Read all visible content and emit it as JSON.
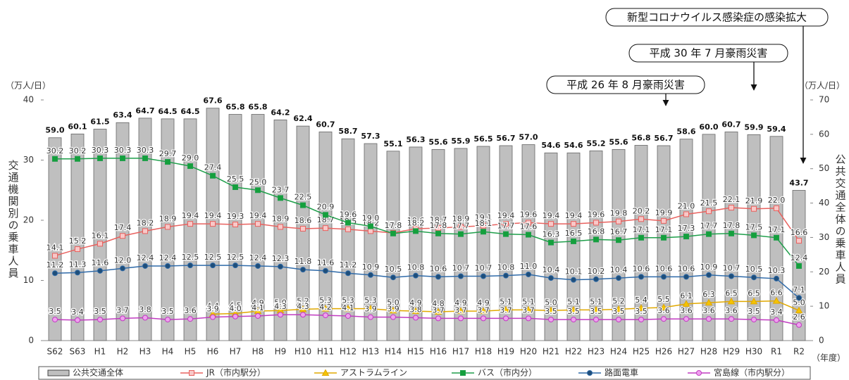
{
  "chart_data": {
    "type": "combo",
    "categories": [
      "S62",
      "S63",
      "H1",
      "H2",
      "H3",
      "H4",
      "H5",
      "H6",
      "H7",
      "H8",
      "H9",
      "H10",
      "H11",
      "H12",
      "H13",
      "H14",
      "H15",
      "H16",
      "H17",
      "H18",
      "H19",
      "H20",
      "H21",
      "H22",
      "H23",
      "H24",
      "H25",
      "H26",
      "H27",
      "H28",
      "H29",
      "H30",
      "R1",
      "R2"
    ],
    "x_label": "（年度）",
    "y_unit": "（万人/日）",
    "y2_unit": "（万人/日）",
    "y_label": "交通機関別の乗車人員",
    "y2_label": "公共交通全体の乗車人員",
    "ylim": [
      0,
      40
    ],
    "yticks": [
      0,
      10,
      20,
      30,
      40
    ],
    "y2lim": [
      0,
      70
    ],
    "y2ticks": [
      0,
      10,
      20,
      30,
      40,
      50,
      60,
      70
    ],
    "series": [
      {
        "name": "公共交通全体",
        "type": "bar",
        "axis": "y2",
        "color": "#bfbfbf",
        "values": [
          59.0,
          60.1,
          61.5,
          63.4,
          64.7,
          64.5,
          64.5,
          67.6,
          65.8,
          65.8,
          64.2,
          62.4,
          60.7,
          58.7,
          57.3,
          55.1,
          56.3,
          55.6,
          55.9,
          56.5,
          56.7,
          57.0,
          54.6,
          54.6,
          55.2,
          55.6,
          56.8,
          56.7,
          58.6,
          60.0,
          60.7,
          59.9,
          59.4,
          43.7
        ],
        "value_labels": [
          "59.0",
          "60.1",
          "61.5",
          "63.4",
          "64.7",
          "64.5",
          "64.5",
          "67.6",
          "65.8",
          "65.8",
          "64.2",
          "62.4",
          "60.7",
          "58.7",
          "57.3",
          "55.1",
          "56.3",
          "55.6",
          "55.9",
          "56.5",
          "56.7",
          "57.0",
          "54.6",
          "54.6",
          "55.2",
          "55.6",
          "56.8",
          "56.7",
          "58.6",
          "60.0",
          "60.7",
          "59.9",
          "59.4",
          "43.7"
        ]
      },
      {
        "name": "JR（市内駅分）",
        "type": "line",
        "marker": "square",
        "color": "#e8625f",
        "marker_fill": "#f8c8c8",
        "values": [
          14.1,
          15.2,
          16.1,
          17.4,
          18.2,
          18.9,
          19.4,
          19.4,
          19.3,
          19.4,
          18.9,
          18.6,
          18.7,
          18.5,
          18.2,
          17.9,
          18.6,
          18.7,
          18.9,
          19.1,
          19.4,
          19.6,
          19.4,
          19.4,
          19.6,
          19.8,
          20.2,
          19.9,
          21.0,
          21.5,
          22.1,
          21.9,
          22.0,
          16.6
        ],
        "value_labels": [
          "14.1",
          "15.2",
          "16.1",
          "17.4",
          "18.2",
          "18.9",
          "19.4",
          "19.4",
          "19.3",
          "19.4",
          "18.9",
          "18.6",
          "18.7",
          "18.5",
          "18.2",
          "17.9",
          "18.6",
          "18.7",
          "18.9",
          "19.1",
          "19.4",
          "19.6",
          "19.4",
          "19.4",
          "19.6",
          "19.8",
          "20.2",
          "19.9",
          "21.0",
          "21.5",
          "22.1",
          "21.9",
          "22.0",
          "16.6"
        ]
      },
      {
        "name": "アストラムライン",
        "type": "line",
        "marker": "triangle",
        "color": "#e0a800",
        "marker_fill": "#f5c400",
        "values": [
          null,
          null,
          null,
          null,
          null,
          null,
          null,
          4.4,
          4.5,
          4.9,
          5.0,
          5.2,
          5.3,
          5.3,
          5.3,
          5.0,
          4.9,
          4.8,
          4.9,
          4.9,
          5.1,
          5.1,
          5.0,
          5.1,
          5.1,
          5.2,
          5.4,
          5.5,
          6.1,
          6.3,
          6.5,
          6.5,
          6.6,
          5.0
        ],
        "value_labels": [
          null,
          null,
          null,
          null,
          null,
          null,
          null,
          "4.4",
          "4.5",
          "4.9",
          "5.0",
          "5.2",
          "5.3",
          "5.3",
          "5.3",
          "5.0",
          "4.9",
          "4.8",
          "4.9",
          "4.9",
          "5.1",
          "5.1",
          "5.0",
          "5.1",
          "5.1",
          "5.2",
          "5.4",
          "5.5",
          "6.1",
          "6.3",
          "6.5",
          "6.5",
          "6.6",
          "5.0"
        ]
      },
      {
        "name": "バス（市内分）",
        "type": "line",
        "marker": "square",
        "color": "#1e9e4a",
        "marker_fill": "#14a03c",
        "values": [
          30.2,
          30.2,
          30.3,
          30.3,
          30.3,
          29.7,
          29.0,
          27.4,
          25.5,
          25.0,
          23.7,
          22.5,
          20.9,
          19.6,
          19.0,
          17.8,
          18.2,
          17.8,
          17.7,
          18.1,
          17.7,
          17.6,
          16.3,
          16.5,
          16.8,
          16.7,
          17.1,
          17.1,
          17.3,
          17.7,
          17.8,
          17.5,
          17.1,
          12.4
        ],
        "value_labels": [
          "30.2",
          "30.2",
          "30.3",
          "30.3",
          "30.3",
          "29.7",
          "29.0",
          "27.4",
          "25.5",
          "25.0",
          "23.7",
          "22.5",
          "20.9",
          "19.6",
          "19.0",
          "17.8",
          "18.2",
          "17.8",
          "17.7",
          "18.1",
          "17.7",
          "17.6",
          "16.3",
          "16.5",
          "16.8",
          "16.7",
          "17.1",
          "17.1",
          "17.3",
          "17.7",
          "17.8",
          "17.5",
          "17.1",
          "12.4"
        ]
      },
      {
        "name": "路面電車",
        "type": "line",
        "marker": "circle",
        "color": "#2f6aa8",
        "marker_fill": "#1f4e79",
        "values": [
          11.2,
          11.3,
          11.6,
          12.0,
          12.4,
          12.4,
          12.5,
          12.5,
          12.5,
          12.4,
          12.3,
          11.8,
          11.6,
          11.2,
          10.9,
          10.5,
          10.8,
          10.6,
          10.7,
          10.7,
          10.8,
          11.0,
          10.4,
          10.1,
          10.2,
          10.4,
          10.6,
          10.6,
          10.6,
          10.9,
          10.7,
          10.5,
          10.3,
          7.1
        ],
        "value_labels": [
          "11.2",
          "11.3",
          "11.6",
          "12.0",
          "12.4",
          "12.4",
          "12.5",
          "12.5",
          "12.5",
          "12.4",
          "12.3",
          "11.8",
          "11.6",
          "11.2",
          "10.9",
          "10.5",
          "10.8",
          "10.6",
          "10.7",
          "10.7",
          "10.8",
          "11.0",
          "10.4",
          "10.1",
          "10.2",
          "10.4",
          "10.6",
          "10.6",
          "10.6",
          "10.9",
          "10.7",
          "10.5",
          "10.3",
          "7.1"
        ]
      },
      {
        "name": "宮島線（市内駅分）",
        "type": "line",
        "marker": "circle",
        "color": "#c03cc0",
        "marker_fill": "#f0a0f0",
        "values": [
          3.5,
          3.4,
          3.5,
          3.7,
          3.8,
          3.5,
          3.6,
          3.9,
          4.0,
          4.1,
          4.3,
          4.3,
          4.2,
          4.1,
          3.9,
          3.9,
          3.8,
          3.7,
          3.7,
          3.7,
          3.7,
          3.7,
          3.5,
          3.5,
          3.5,
          3.5,
          3.5,
          3.6,
          3.6,
          3.6,
          3.6,
          3.5,
          3.4,
          2.6
        ],
        "value_labels": [
          "3.5",
          "3.4",
          "3.5",
          "3.7",
          "3.8",
          "3.5",
          "3.6",
          "3.9",
          "4.0",
          "4.1",
          "4.3",
          "4.3",
          "4.2",
          "4.1",
          "3.9",
          "3.9",
          "3.8",
          "3.7",
          "3.7",
          "3.7",
          "3.7",
          "3.7",
          "3.5",
          "3.5",
          "3.5",
          "3.5",
          "3.5",
          "3.6",
          "3.6",
          "3.6",
          "3.6",
          "3.5",
          "3.4",
          "2.6"
        ]
      }
    ],
    "annotations": [
      {
        "text": "新型コロナウイルス感染症の感染拡大"
      },
      {
        "text": "平成 30 年 7 月豪雨災害"
      },
      {
        "text": "平成 26 年 8 月豪雨災害"
      }
    ]
  }
}
